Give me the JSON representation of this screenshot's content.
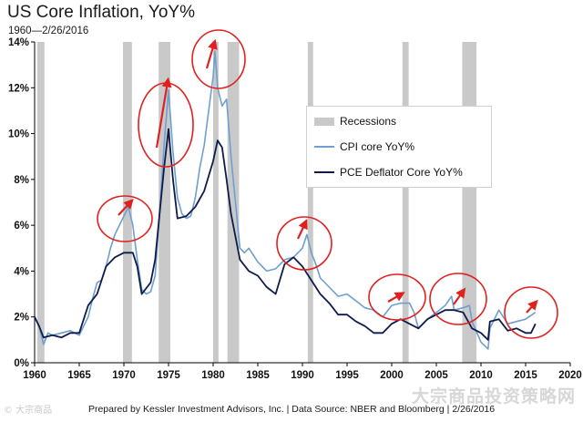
{
  "header": {
    "title": "US Core Inflation, YoY%",
    "subtitle": "1960—2/26/2016"
  },
  "footer": {
    "source": "Prepared by Kessler Investment Advisors, Inc. | Data Source: NBER and Bloomberg | 2/26/2016"
  },
  "watermarks": {
    "left": "© 大宗商品",
    "right": "大宗商品投资策略网"
  },
  "chart_data": {
    "type": "line",
    "title": "US Core Inflation, YoY%",
    "subtitle": "1960—2/26/2016",
    "xlabel": "",
    "ylabel": "",
    "xlim": [
      1960,
      2020
    ],
    "ylim": [
      0,
      14
    ],
    "xticks": [
      1960,
      1965,
      1970,
      1975,
      1980,
      1985,
      1990,
      1995,
      2000,
      2005,
      2010,
      2015,
      2020
    ],
    "yticks": [
      0,
      2,
      4,
      6,
      8,
      10,
      12,
      14
    ],
    "ytick_suffix": "%",
    "grid": false,
    "legend_position": "upper-right",
    "legend": [
      "Recessions",
      "CPI core YoY%",
      "PCE Deflator Core YoY%"
    ],
    "recessions": [
      [
        1960.3,
        1961.1
      ],
      [
        1969.9,
        1970.9
      ],
      [
        1973.9,
        1975.2
      ],
      [
        1980.0,
        1980.6
      ],
      [
        1981.6,
        1982.9
      ],
      [
        1990.6,
        1991.2
      ],
      [
        2001.2,
        2001.9
      ],
      [
        2007.9,
        2009.5
      ]
    ],
    "colors": {
      "recession": "#c9c9c9",
      "cpi": "#6e9fd0",
      "pce": "#0f1b4c",
      "annotation": "#e0201e"
    },
    "series": [
      {
        "name": "CPI core YoY%",
        "x": [
          1960,
          1960.5,
          1961,
          1961.5,
          1962,
          1963,
          1964,
          1965,
          1966,
          1966.5,
          1967,
          1967.5,
          1968,
          1968.5,
          1969,
          1969.5,
          1970,
          1970.5,
          1971,
          1971.5,
          1972,
          1972.5,
          1973,
          1973.5,
          1974,
          1974.5,
          1975,
          1975.5,
          1976,
          1976.5,
          1977,
          1977.5,
          1978,
          1978.5,
          1979,
          1979.5,
          1980,
          1980.2,
          1980.5,
          1981,
          1981.5,
          1982,
          1982.5,
          1983,
          1983.5,
          1984,
          1985,
          1986,
          1987,
          1988,
          1989,
          1990,
          1990.5,
          1991,
          1991.5,
          1992,
          1993,
          1994,
          1995,
          1996,
          1997,
          1998,
          1999,
          2000,
          2001,
          2002,
          2002.5,
          2003,
          2004,
          2005,
          2006,
          2006.7,
          2007,
          2008,
          2008.7,
          2009,
          2010,
          2010.8,
          2011,
          2012,
          2013,
          2014,
          2015,
          2016.1
        ],
        "values": [
          2.0,
          1.6,
          0.8,
          1.3,
          1.2,
          1.3,
          1.4,
          1.2,
          2.0,
          2.8,
          3.5,
          3.6,
          4.2,
          5.0,
          5.6,
          6.0,
          6.4,
          6.8,
          6.0,
          4.5,
          3.2,
          3.0,
          3.1,
          3.8,
          6.5,
          9.5,
          11.9,
          9.2,
          7.2,
          6.5,
          6.3,
          6.4,
          7.2,
          8.5,
          9.5,
          11.0,
          12.5,
          13.6,
          12.0,
          11.2,
          11.5,
          9.0,
          7.0,
          5.0,
          4.8,
          5.0,
          4.4,
          4.0,
          4.1,
          4.5,
          4.6,
          5.0,
          5.6,
          4.8,
          4.3,
          3.7,
          3.3,
          2.9,
          3.0,
          2.7,
          2.4,
          2.3,
          2.0,
          2.5,
          2.6,
          2.6,
          2.2,
          1.5,
          1.9,
          2.2,
          2.5,
          2.9,
          2.3,
          2.4,
          2.5,
          1.8,
          0.9,
          0.6,
          1.5,
          2.3,
          1.7,
          1.8,
          1.9,
          2.2
        ]
      },
      {
        "name": "PCE Deflator Core YoY%",
        "x": [
          1960,
          1960.5,
          1961,
          1962,
          1963,
          1964,
          1965,
          1966,
          1967,
          1968,
          1969,
          1970,
          1971,
          1971.5,
          1972,
          1973,
          1973.5,
          1974,
          1974.5,
          1975,
          1975.5,
          1976,
          1977,
          1978,
          1979,
          1980,
          1980.5,
          1981,
          1981.5,
          1982,
          1983,
          1984,
          1985,
          1986,
          1987,
          1988,
          1989,
          1990,
          1991,
          1992,
          1993,
          1994,
          1995,
          1996,
          1997,
          1998,
          1999,
          2000,
          2001,
          2002,
          2003,
          2004,
          2005,
          2006,
          2007,
          2008,
          2009,
          2010,
          2010.8,
          2011,
          2012,
          2013,
          2014,
          2015,
          2015.6,
          2016.1
        ],
        "values": [
          2.0,
          1.6,
          1.1,
          1.2,
          1.1,
          1.3,
          1.3,
          2.5,
          3.0,
          4.2,
          4.6,
          4.8,
          4.8,
          4.2,
          3.0,
          3.5,
          4.5,
          6.5,
          8.5,
          10.2,
          8.0,
          6.3,
          6.4,
          6.8,
          7.5,
          8.8,
          9.7,
          9.4,
          8.0,
          6.5,
          4.5,
          4.0,
          3.8,
          3.3,
          3.0,
          4.3,
          4.6,
          4.2,
          3.6,
          3.0,
          2.6,
          2.1,
          2.1,
          1.8,
          1.6,
          1.3,
          1.3,
          1.7,
          1.9,
          1.7,
          1.5,
          1.9,
          2.1,
          2.3,
          2.3,
          2.2,
          1.5,
          1.3,
          1.0,
          1.8,
          1.9,
          1.4,
          1.5,
          1.3,
          1.3,
          1.7
        ]
      }
    ]
  }
}
